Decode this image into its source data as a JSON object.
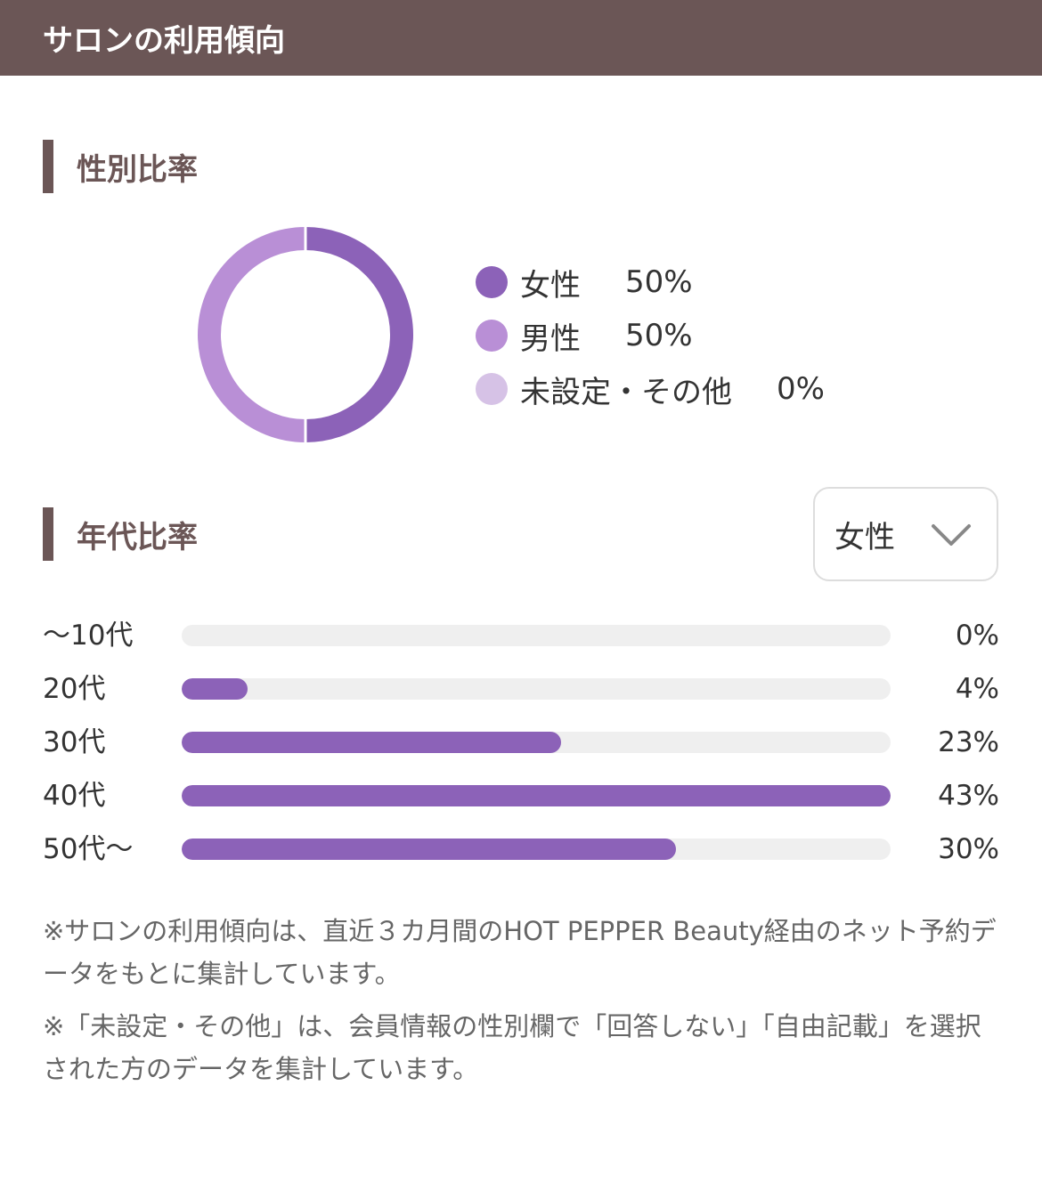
{
  "header": {
    "title": "サロンの利用傾向"
  },
  "gender_section": {
    "title": "性別比率"
  },
  "age_section": {
    "title": "年代比率",
    "filter_selected": "女性"
  },
  "colors": {
    "female": "#8c62b8",
    "male": "#b98fd6",
    "other": "#d6c2e6",
    "bar_fill": "#8c62b8",
    "bar_track": "#efefef",
    "accent": "#6b5656"
  },
  "icons": {
    "select_arrow": "chevron-down-icon"
  },
  "chart_data": [
    {
      "type": "pie",
      "categories": [
        "女性",
        "男性",
        "未設定・その他"
      ],
      "values": [
        50,
        50,
        0
      ],
      "value_labels": [
        "50%",
        "50%",
        "0%"
      ],
      "title": "性別比率",
      "legend": "right"
    },
    {
      "type": "bar",
      "orientation": "horizontal",
      "categories": [
        "〜10代",
        "20代",
        "30代",
        "40代",
        "50代〜"
      ],
      "values": [
        0,
        4,
        23,
        43,
        30
      ],
      "value_labels": [
        "0%",
        "4%",
        "23%",
        "43%",
        "30%"
      ],
      "title": "年代比率",
      "xlim": [
        0,
        43
      ]
    }
  ],
  "notes": [
    "※サロンの利用傾向は、直近３カ月間のHOT PEPPER Beauty経由のネット予約データをもとに集計しています。",
    "※「未設定・その他」は、会員情報の性別欄で「回答しない」「自由記載」を選択された方のデータを集計しています。"
  ]
}
